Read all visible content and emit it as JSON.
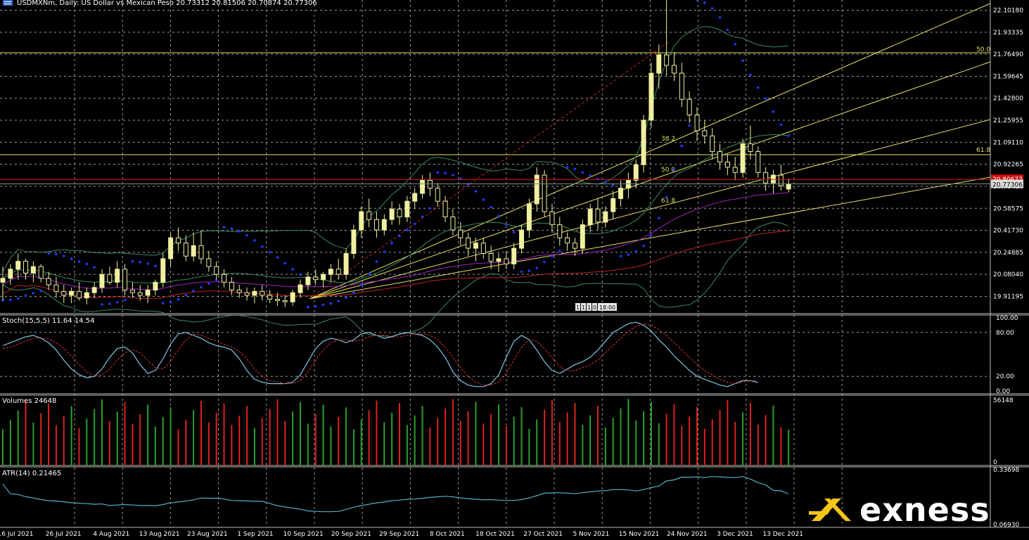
{
  "header": {
    "title": "USDMXNm, Daily:  US Dollar vs Mexican Peso  20.73312 20.81506 20.70874 20.77306"
  },
  "colors": {
    "background": "#000000",
    "grid": "#9a9a9a",
    "bull": "#f0f0a0",
    "bear": "#f0f0a0",
    "psar": "#1a3cff",
    "fib": "#e8e066",
    "bollinger": "#3a8a5a",
    "ma_red": "#c02020",
    "ma_purple": "#a020c0",
    "stoch_main": "#7ec8e8",
    "stoch_signal": "#e03030",
    "vol_up": "#2aa02a",
    "vol_down": "#e02020",
    "atr": "#4fb0c8",
    "bid_line": "#d01010"
  },
  "chart_data": [
    {
      "type": "candlestick",
      "title": "USDMXNm, Daily:  US Dollar vs Mexican Peso",
      "ohlc_last": [
        20.73312,
        20.81506,
        20.70874,
        20.77306
      ],
      "y_ticks": [
        "22.10180",
        "21.93335",
        "21.76490",
        "21.59645",
        "21.42800",
        "21.25955",
        "21.09110",
        "20.92265",
        "20.75420",
        "20.58575",
        "20.41730",
        "20.24885",
        "20.08040",
        "19.91195"
      ],
      "current_price_label": "20.77306",
      "bid_price_label": "20.80677",
      "x_labels": [
        "16 Jul 2021",
        "26 Jul 2021",
        "4 Aug 2021",
        "13 Aug 2021",
        "23 Aug 2021",
        "1 Sep 2021",
        "10 Sep 2021",
        "20 Sep 2021",
        "29 Sep 2021",
        "8 Oct 2021",
        "18 Oct 2021",
        "27 Oct 2021",
        "5 Nov 2021",
        "15 Nov 2021",
        "24 Nov 2021",
        "3 Dec 2021",
        "13 Dec 2021"
      ],
      "fib_labels": {
        "h50": "50.0",
        "h618": "61.8",
        "fan382": "38.2",
        "fan50": "50.0",
        "fan618": "61.8"
      },
      "time_marker": [
        "1",
        "1",
        "1",
        "0",
        "18:00"
      ],
      "candles": [
        [
          20.02,
          20.14,
          19.88,
          20.05
        ],
        [
          20.05,
          20.16,
          20.0,
          20.12
        ],
        [
          20.12,
          20.24,
          20.04,
          20.18
        ],
        [
          20.18,
          20.2,
          20.04,
          20.09
        ],
        [
          20.09,
          20.18,
          20.02,
          20.14
        ],
        [
          20.14,
          20.16,
          20.02,
          20.05
        ],
        [
          20.05,
          20.1,
          19.96,
          20.0
        ],
        [
          20.0,
          20.06,
          19.9,
          19.95
        ],
        [
          19.95,
          20.0,
          19.86,
          19.92
        ],
        [
          19.92,
          19.98,
          19.86,
          19.95
        ],
        [
          19.95,
          20.02,
          19.88,
          19.9
        ],
        [
          19.9,
          19.98,
          19.85,
          19.94
        ],
        [
          19.94,
          20.02,
          19.9,
          19.98
        ],
        [
          19.98,
          20.12,
          19.94,
          20.08
        ],
        [
          20.08,
          20.14,
          20.0,
          20.02
        ],
        [
          20.02,
          20.18,
          19.98,
          20.12
        ],
        [
          20.12,
          20.16,
          19.92,
          19.96
        ],
        [
          19.96,
          20.02,
          19.9,
          19.94
        ],
        [
          19.94,
          20.0,
          19.88,
          19.92
        ],
        [
          19.92,
          20.0,
          19.86,
          19.96
        ],
        [
          19.96,
          20.04,
          19.92,
          20.02
        ],
        [
          20.02,
          20.24,
          19.98,
          20.2
        ],
        [
          20.2,
          20.4,
          20.14,
          20.36
        ],
        [
          20.36,
          20.44,
          20.26,
          20.32
        ],
        [
          20.32,
          20.38,
          20.18,
          20.22
        ],
        [
          20.22,
          20.4,
          20.18,
          20.3
        ],
        [
          20.3,
          20.42,
          20.16,
          20.2
        ],
        [
          20.2,
          20.26,
          20.1,
          20.14
        ],
        [
          20.14,
          20.18,
          20.04,
          20.08
        ],
        [
          20.08,
          20.12,
          19.98,
          20.02
        ],
        [
          20.02,
          20.06,
          19.92,
          19.96
        ],
        [
          19.96,
          20.0,
          19.9,
          19.94
        ],
        [
          19.94,
          19.98,
          19.88,
          19.92
        ],
        [
          19.92,
          19.98,
          19.86,
          19.95
        ],
        [
          19.95,
          20.0,
          19.88,
          19.92
        ],
        [
          19.92,
          19.96,
          19.86,
          19.89
        ],
        [
          19.89,
          19.94,
          19.84,
          19.88
        ],
        [
          19.88,
          19.92,
          19.83,
          19.87
        ],
        [
          19.87,
          19.96,
          19.84,
          19.94
        ],
        [
          19.94,
          20.04,
          19.9,
          20.0
        ],
        [
          20.0,
          20.1,
          19.96,
          20.06
        ],
        [
          20.06,
          20.12,
          20.0,
          20.04
        ],
        [
          20.04,
          20.1,
          19.98,
          20.08
        ],
        [
          20.08,
          20.16,
          20.02,
          20.12
        ],
        [
          20.12,
          20.2,
          20.04,
          20.08
        ],
        [
          20.08,
          20.28,
          20.04,
          20.24
        ],
        [
          20.24,
          20.46,
          20.2,
          20.42
        ],
        [
          20.42,
          20.6,
          20.36,
          20.56
        ],
        [
          20.56,
          20.66,
          20.44,
          20.5
        ],
        [
          20.5,
          20.56,
          20.36,
          20.42
        ],
        [
          20.42,
          20.54,
          20.38,
          20.5
        ],
        [
          20.5,
          20.64,
          20.46,
          20.58
        ],
        [
          20.58,
          20.62,
          20.46,
          20.52
        ],
        [
          20.52,
          20.68,
          20.48,
          20.64
        ],
        [
          20.64,
          20.74,
          20.58,
          20.7
        ],
        [
          20.7,
          20.84,
          20.66,
          20.8
        ],
        [
          20.8,
          20.86,
          20.68,
          20.74
        ],
        [
          20.74,
          20.78,
          20.6,
          20.64
        ],
        [
          20.64,
          20.68,
          20.48,
          20.52
        ],
        [
          20.52,
          20.58,
          20.38,
          20.42
        ],
        [
          20.42,
          20.48,
          20.3,
          20.36
        ],
        [
          20.36,
          20.4,
          20.22,
          20.28
        ],
        [
          20.28,
          20.36,
          20.18,
          20.32
        ],
        [
          20.32,
          20.36,
          20.2,
          20.24
        ],
        [
          20.24,
          20.3,
          20.12,
          20.18
        ],
        [
          20.18,
          20.24,
          20.1,
          20.2
        ],
        [
          20.2,
          20.26,
          20.12,
          20.16
        ],
        [
          20.16,
          20.32,
          20.12,
          20.28
        ],
        [
          20.28,
          20.46,
          20.24,
          20.42
        ],
        [
          20.42,
          20.66,
          20.36,
          20.62
        ],
        [
          20.62,
          20.9,
          20.56,
          20.84
        ],
        [
          20.84,
          20.88,
          20.52,
          20.56
        ],
        [
          20.56,
          20.62,
          20.4,
          20.46
        ],
        [
          20.46,
          20.52,
          20.3,
          20.36
        ],
        [
          20.36,
          20.4,
          20.26,
          20.32
        ],
        [
          20.32,
          20.36,
          20.22,
          20.28
        ],
        [
          20.28,
          20.5,
          20.24,
          20.46
        ],
        [
          20.46,
          20.62,
          20.4,
          20.58
        ],
        [
          20.58,
          20.66,
          20.42,
          20.48
        ],
        [
          20.48,
          20.6,
          20.44,
          20.56
        ],
        [
          20.56,
          20.72,
          20.5,
          20.66
        ],
        [
          20.66,
          20.8,
          20.6,
          20.74
        ],
        [
          20.74,
          20.86,
          20.66,
          20.8
        ],
        [
          20.8,
          20.96,
          20.74,
          20.92
        ],
        [
          20.92,
          21.3,
          20.86,
          21.26
        ],
        [
          21.26,
          21.7,
          21.2,
          21.62
        ],
        [
          21.62,
          21.84,
          21.5,
          21.76
        ],
        [
          21.76,
          22.18,
          21.6,
          21.68
        ],
        [
          21.68,
          21.78,
          21.56,
          21.62
        ],
        [
          21.62,
          21.7,
          21.36,
          21.42
        ],
        [
          21.42,
          21.48,
          21.24,
          21.3
        ],
        [
          21.3,
          21.36,
          21.1,
          21.18
        ],
        [
          21.18,
          21.26,
          21.08,
          21.14
        ],
        [
          21.14,
          21.2,
          20.96,
          21.02
        ],
        [
          21.02,
          21.08,
          20.88,
          20.94
        ],
        [
          20.94,
          21.0,
          20.84,
          20.9
        ],
        [
          20.9,
          20.98,
          20.8,
          20.86
        ],
        [
          20.86,
          21.12,
          20.82,
          21.08
        ],
        [
          21.08,
          21.22,
          20.96,
          21.02
        ],
        [
          21.02,
          21.06,
          20.82,
          20.86
        ],
        [
          20.86,
          20.9,
          20.72,
          20.78
        ],
        [
          20.78,
          20.88,
          20.7,
          20.84
        ],
        [
          20.84,
          20.92,
          20.72,
          20.76
        ],
        [
          20.73312,
          20.81506,
          20.70874,
          20.77306
        ]
      ]
    },
    {
      "type": "line",
      "title": "Stoch(15,5,5) 11.64 14.54",
      "y_ticks": [
        "100.00",
        "80.00",
        "20.00",
        "0.00"
      ],
      "ylim": [
        0,
        100
      ],
      "series": [
        {
          "name": "main",
          "values": [
            62,
            66,
            70,
            74,
            76,
            72,
            66,
            56,
            42,
            30,
            22,
            18,
            20,
            30,
            46,
            58,
            60,
            52,
            36,
            24,
            28,
            44,
            64,
            78,
            80,
            76,
            72,
            66,
            62,
            60,
            56,
            44,
            28,
            16,
            12,
            10,
            10,
            10,
            12,
            22,
            40,
            58,
            68,
            72,
            70,
            66,
            70,
            78,
            80,
            76,
            72,
            74,
            78,
            80,
            78,
            76,
            70,
            60,
            46,
            26,
            14,
            8,
            6,
            6,
            10,
            22,
            46,
            68,
            76,
            70,
            56,
            40,
            28,
            24,
            30,
            36,
            40,
            46,
            56,
            68,
            80,
            86,
            92,
            94,
            90,
            82,
            70,
            60,
            48,
            38,
            28,
            20,
            16,
            12,
            8,
            6,
            10,
            14,
            14,
            11.64
          ]
        },
        {
          "name": "signal",
          "values": [
            58,
            60,
            64,
            68,
            72,
            73,
            71,
            66,
            58,
            48,
            36,
            26,
            20,
            22,
            30,
            42,
            52,
            56,
            52,
            42,
            32,
            30,
            40,
            56,
            70,
            78,
            76,
            72,
            68,
            64,
            60,
            54,
            44,
            30,
            20,
            14,
            12,
            10,
            10,
            14,
            26,
            42,
            56,
            66,
            70,
            70,
            68,
            70,
            74,
            76,
            76,
            74,
            74,
            76,
            78,
            78,
            76,
            70,
            60,
            46,
            32,
            20,
            12,
            8,
            8,
            12,
            24,
            42,
            60,
            70,
            68,
            58,
            46,
            34,
            28,
            28,
            32,
            36,
            42,
            52,
            62,
            72,
            82,
            88,
            92,
            90,
            84,
            76,
            66,
            56,
            46,
            36,
            28,
            22,
            16,
            12,
            10,
            12,
            14,
            14.54
          ]
        }
      ]
    },
    {
      "type": "bar",
      "title": "Volumes 24648",
      "y_ticks": [
        "56148",
        "0"
      ],
      "ylim": [
        0,
        56148
      ]
    },
    {
      "type": "line",
      "title": "ATR(14) 0.21465",
      "y_ticks": [
        "0.33698",
        "0.06930"
      ],
      "ylim": [
        0.0693,
        0.33698
      ]
    }
  ],
  "brand": {
    "name": "exness"
  }
}
